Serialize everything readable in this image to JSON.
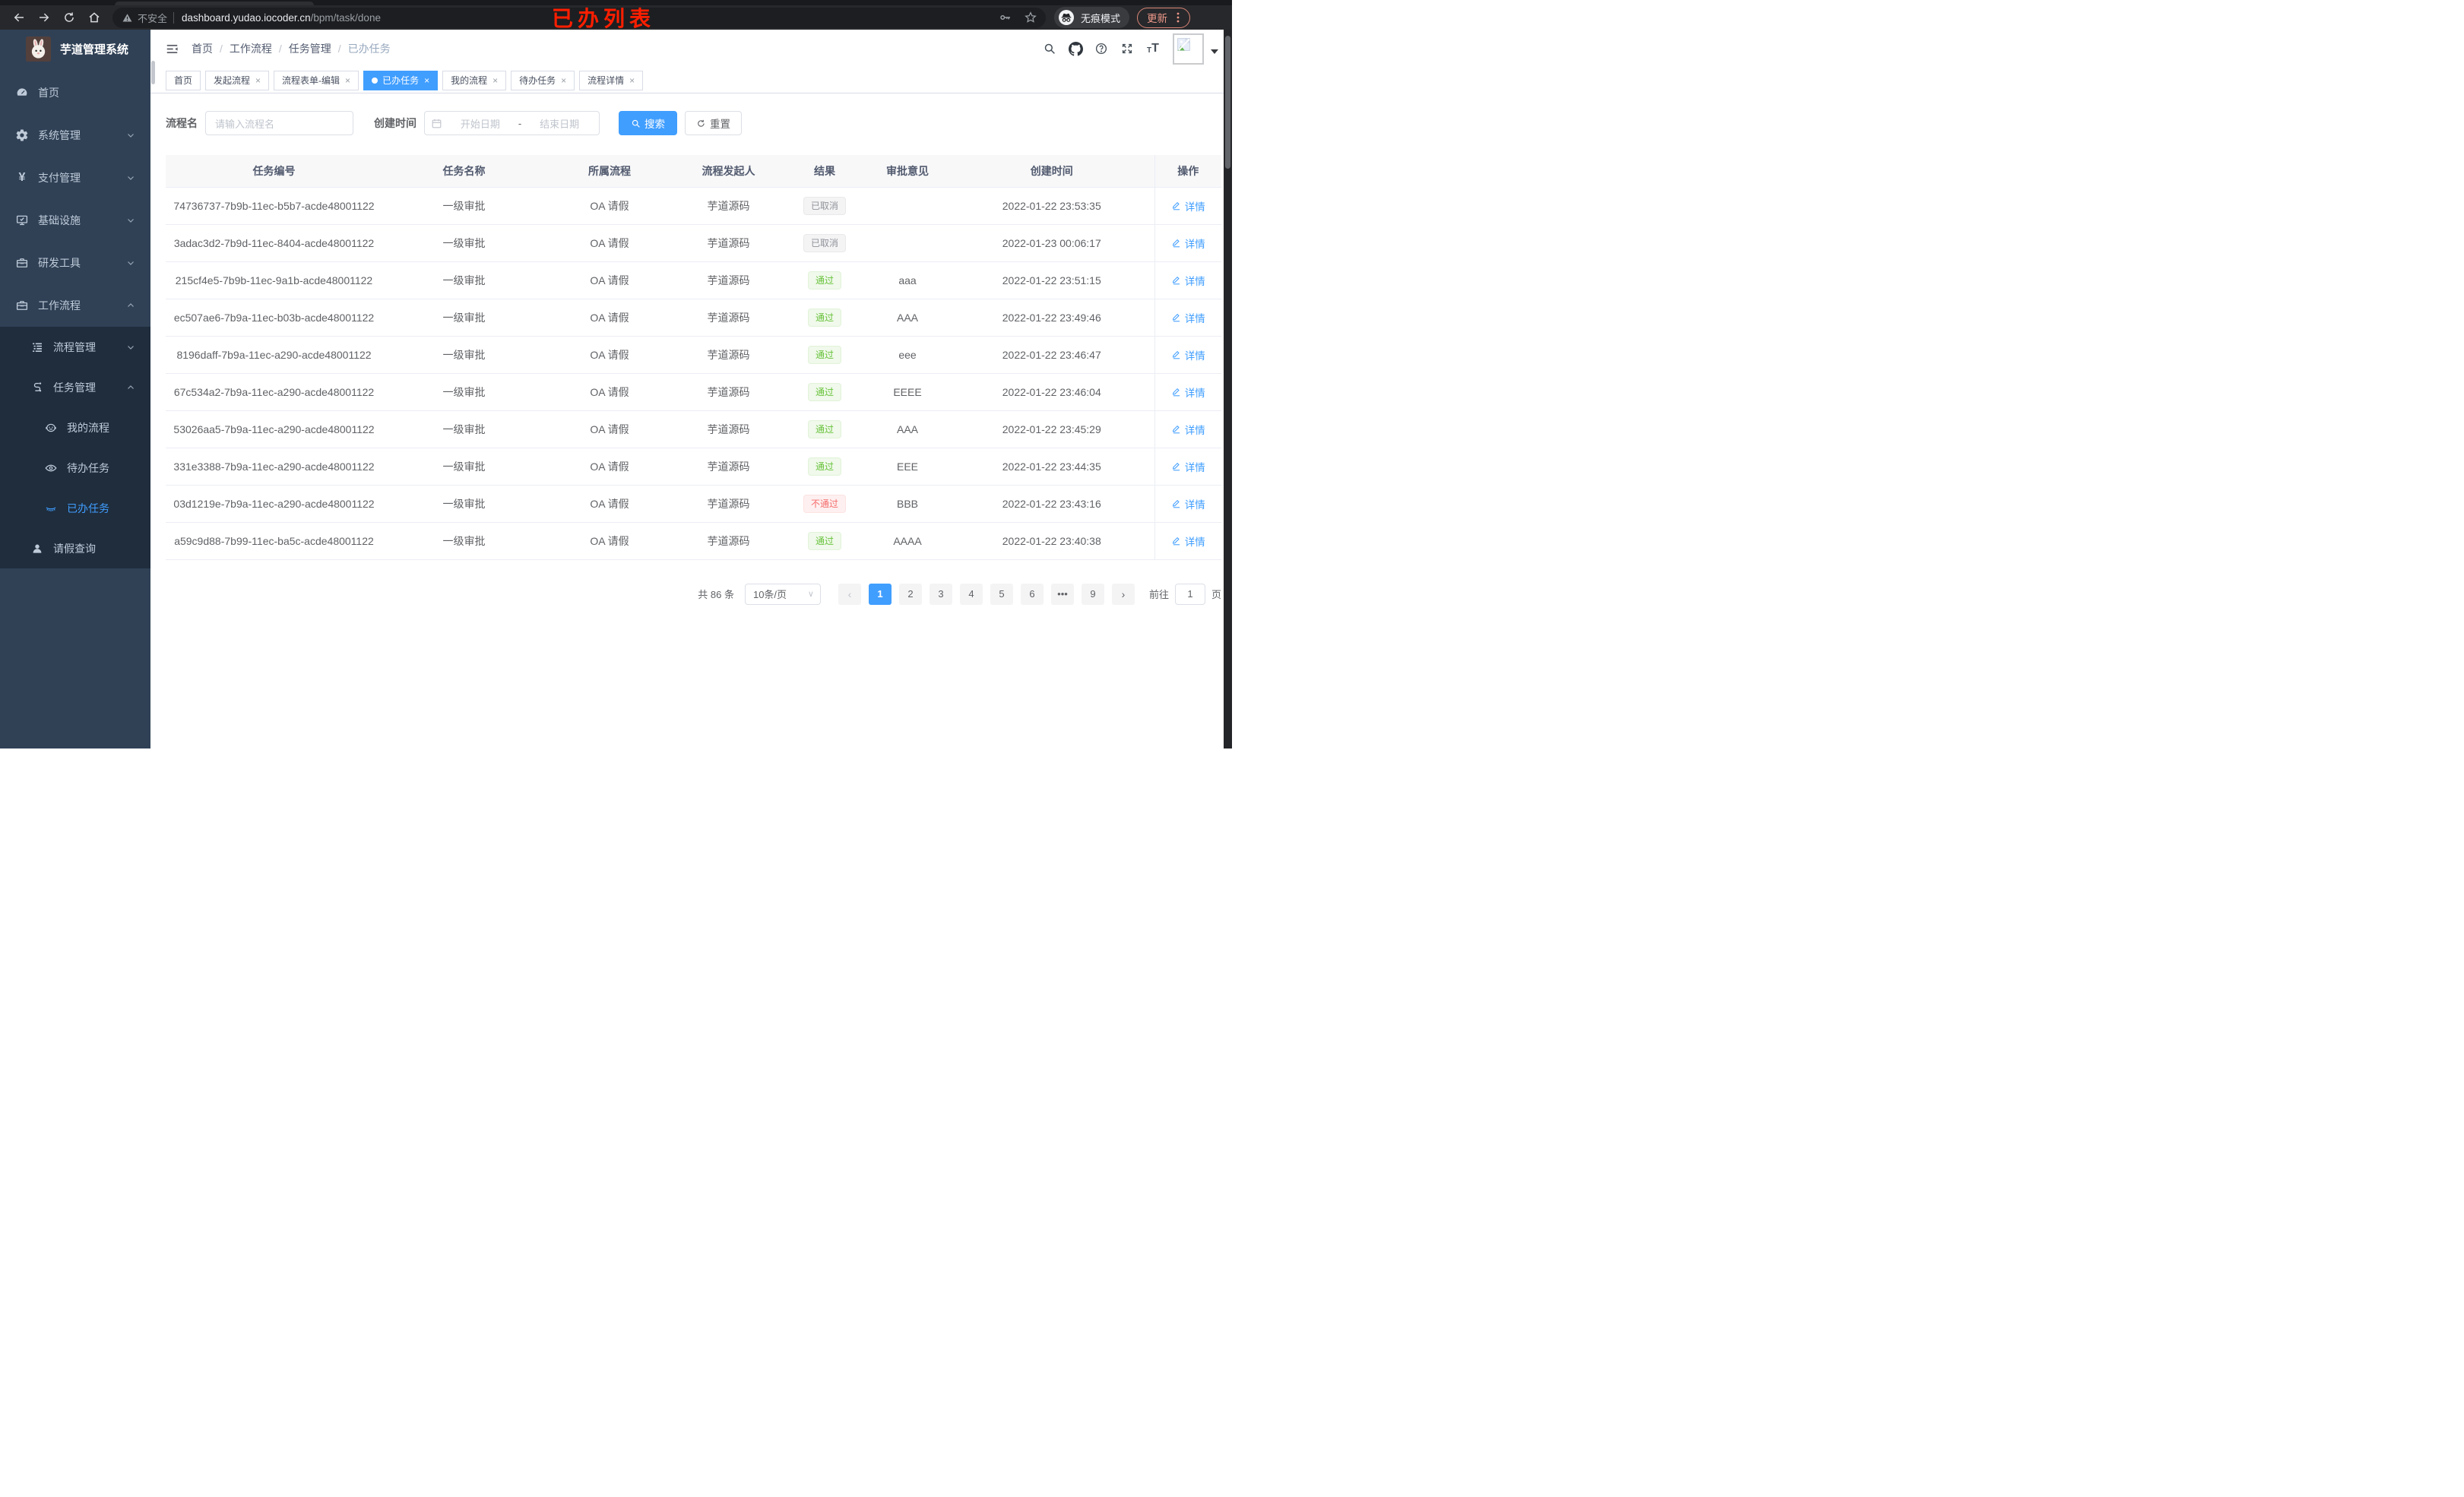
{
  "browser": {
    "security_label": "不安全",
    "url_host": "dashboard.yudao.iocoder.cn",
    "url_path": "/bpm/task/done",
    "incognito_label": "无痕模式",
    "update_label": "更新",
    "nav_icons": [
      "back-icon",
      "forward-icon",
      "reload-icon",
      "home-icon"
    ]
  },
  "annotation": {
    "text": "已办列表",
    "color": "#ff1e00"
  },
  "sidebar": {
    "logo_title": "芋道管理系统",
    "items": [
      {
        "key": "home",
        "icon": "dashboard-icon",
        "label": "首页",
        "depth": 0
      },
      {
        "key": "system",
        "icon": "gear-icon",
        "label": "系统管理",
        "depth": 0,
        "chevron": "down"
      },
      {
        "key": "payment",
        "icon": "yen-icon",
        "label": "支付管理",
        "depth": 0,
        "chevron": "down"
      },
      {
        "key": "infrastructure",
        "icon": "monitor-icon",
        "label": "基础设施",
        "depth": 0,
        "chevron": "down"
      },
      {
        "key": "dev-tools",
        "icon": "toolbox-icon",
        "label": "研发工具",
        "depth": 0,
        "chevron": "down"
      },
      {
        "key": "workflow",
        "icon": "toolbox-icon",
        "label": "工作流程",
        "depth": 0,
        "chevron": "up"
      },
      {
        "key": "process-mgmt",
        "icon": "tree-list-icon",
        "label": "流程管理",
        "depth": 1,
        "chevron": "down",
        "submenu": true
      },
      {
        "key": "task-mgmt",
        "icon": "flow-icon",
        "label": "任务管理",
        "depth": 1,
        "chevron": "up",
        "submenu": true
      },
      {
        "key": "my-process",
        "icon": "face-icon",
        "label": "我的流程",
        "depth": 2,
        "submenu": true
      },
      {
        "key": "todo-tasks",
        "icon": "eye-icon",
        "label": "待办任务",
        "depth": 2,
        "submenu": true
      },
      {
        "key": "done-tasks",
        "icon": "eye-closed-icon",
        "label": "已办任务",
        "depth": 2,
        "submenu": true,
        "active": true
      },
      {
        "key": "leave-query",
        "icon": "user-icon",
        "label": "请假查询",
        "depth": 1,
        "submenu": true
      }
    ]
  },
  "header": {
    "breadcrumb": [
      "首页",
      "工作流程",
      "任务管理",
      "已办任务"
    ],
    "action_icons": [
      "search-icon",
      "github-icon",
      "help-icon",
      "fullscreen-icon",
      "font-size-icon"
    ]
  },
  "tabs": [
    {
      "key": "home",
      "label": "首页"
    },
    {
      "key": "launch-process",
      "label": "发起流程",
      "closable": true
    },
    {
      "key": "form-edit",
      "label": "流程表单-编辑",
      "closable": true
    },
    {
      "key": "done-tasks",
      "label": "已办任务",
      "closable": true,
      "active": true
    },
    {
      "key": "my-process",
      "label": "我的流程",
      "closable": true
    },
    {
      "key": "todo-tasks",
      "label": "待办任务",
      "closable": true
    },
    {
      "key": "process-detail",
      "label": "流程详情",
      "closable": true
    }
  ],
  "filters": {
    "name_label": "流程名",
    "name_placeholder": "请输入流程名",
    "time_label": "创建时间",
    "start_placeholder": "开始日期",
    "range_separator": "-",
    "end_placeholder": "结束日期",
    "search_label": "搜索",
    "reset_label": "重置"
  },
  "table": {
    "columns": [
      "任务编号",
      "任务名称",
      "所属流程",
      "流程发起人",
      "结果",
      "审批意见",
      "创建时间",
      "操作"
    ],
    "action_label": "详情",
    "rows": [
      {
        "id": "74736737-7b9b-11ec-b5b7-acde48001122",
        "name": "一级审批",
        "process": "OA 请假",
        "starter": "芋道源码",
        "result": "已取消",
        "result_type": "info",
        "comment": "",
        "created": "2022-01-22 23:53:35"
      },
      {
        "id": "3adac3d2-7b9d-11ec-8404-acde48001122",
        "name": "一级审批",
        "process": "OA 请假",
        "starter": "芋道源码",
        "result": "已取消",
        "result_type": "info",
        "comment": "",
        "created": "2022-01-23 00:06:17"
      },
      {
        "id": "215cf4e5-7b9b-11ec-9a1b-acde48001122",
        "name": "一级审批",
        "process": "OA 请假",
        "starter": "芋道源码",
        "result": "通过",
        "result_type": "success",
        "comment": "aaa",
        "created": "2022-01-22 23:51:15"
      },
      {
        "id": "ec507ae6-7b9a-11ec-b03b-acde48001122",
        "name": "一级审批",
        "process": "OA 请假",
        "starter": "芋道源码",
        "result": "通过",
        "result_type": "success",
        "comment": "AAA",
        "created": "2022-01-22 23:49:46"
      },
      {
        "id": "8196daff-7b9a-11ec-a290-acde48001122",
        "name": "一级审批",
        "process": "OA 请假",
        "starter": "芋道源码",
        "result": "通过",
        "result_type": "success",
        "comment": "eee",
        "created": "2022-01-22 23:46:47"
      },
      {
        "id": "67c534a2-7b9a-11ec-a290-acde48001122",
        "name": "一级审批",
        "process": "OA 请假",
        "starter": "芋道源码",
        "result": "通过",
        "result_type": "success",
        "comment": "EEEE",
        "created": "2022-01-22 23:46:04"
      },
      {
        "id": "53026aa5-7b9a-11ec-a290-acde48001122",
        "name": "一级审批",
        "process": "OA 请假",
        "starter": "芋道源码",
        "result": "通过",
        "result_type": "success",
        "comment": "AAA",
        "created": "2022-01-22 23:45:29"
      },
      {
        "id": "331e3388-7b9a-11ec-a290-acde48001122",
        "name": "一级审批",
        "process": "OA 请假",
        "starter": "芋道源码",
        "result": "通过",
        "result_type": "success",
        "comment": "EEE",
        "created": "2022-01-22 23:44:35"
      },
      {
        "id": "03d1219e-7b9a-11ec-a290-acde48001122",
        "name": "一级审批",
        "process": "OA 请假",
        "starter": "芋道源码",
        "result": "不通过",
        "result_type": "danger",
        "comment": "BBB",
        "created": "2022-01-22 23:43:16"
      },
      {
        "id": "a59c9d88-7b99-11ec-ba5c-acde48001122",
        "name": "一级审批",
        "process": "OA 请假",
        "starter": "芋道源码",
        "result": "通过",
        "result_type": "success",
        "comment": "AAAA",
        "created": "2022-01-22 23:40:38"
      }
    ]
  },
  "pagination": {
    "total_label": "共 86 条",
    "page_size_label": "10条/页",
    "pages": [
      "1",
      "2",
      "3",
      "4",
      "5",
      "6",
      "•••",
      "9"
    ],
    "active_page": "1",
    "prev_label": "‹",
    "next_label": "›",
    "goto_label": "前往",
    "goto_value": "1",
    "unit_label": "页"
  },
  "colors": {
    "accent": "#409eff",
    "success": "#67c23a",
    "danger": "#f56c6c",
    "info": "#909399",
    "sidebar_bg": "#304156",
    "submenu_bg": "#1f2d3d",
    "annotation_red": "#ff1e00"
  }
}
